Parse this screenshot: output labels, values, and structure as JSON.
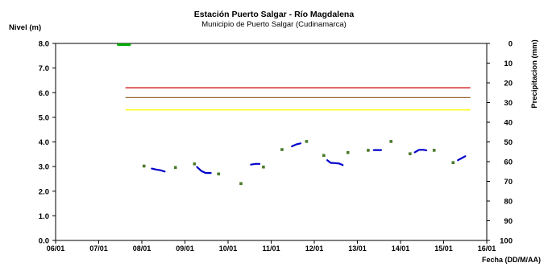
{
  "chart_data": {
    "type": "line",
    "title": "Estación Puerto Salgar - Río Magdalena",
    "subtitle": "Municipio de Puerto Salgar (Cudinamarca)",
    "ylabel": "Nivel (m)",
    "y2label": "Precipitacion (mm)",
    "xlabel": "Fecha (DD/M/AA)",
    "x_ticks": [
      "06/01",
      "07/01",
      "08/01",
      "09/01",
      "10/01",
      "11/01",
      "12/01",
      "13/01",
      "14/01",
      "15/01",
      "16/01"
    ],
    "y_ticks": [
      "0.0",
      "1.0",
      "2.0",
      "3.0",
      "4.0",
      "5.0",
      "6.0",
      "7.0",
      "8.0"
    ],
    "y2_ticks": [
      "0",
      "10",
      "20",
      "30",
      "40",
      "50",
      "60",
      "70",
      "80",
      "90",
      "100"
    ],
    "ylim": [
      0,
      8
    ],
    "y2lim": [
      0,
      100
    ],
    "xlim_days": [
      1,
      11
    ],
    "grid": false,
    "thresholds": [
      {
        "level": 6.2,
        "color": "#cc0000"
      },
      {
        "level": 5.8,
        "color": "#996633"
      },
      {
        "level": 5.3,
        "color": "#ffff00"
      }
    ],
    "series": [
      {
        "color": "#0000cc",
        "segments": [
          [
            [
              3.23,
              2.92
            ],
            [
              3.33,
              2.88
            ],
            [
              3.43,
              2.85
            ],
            [
              3.53,
              2.8
            ]
          ],
          [
            [
              4.28,
              2.98
            ],
            [
              4.38,
              2.82
            ],
            [
              4.48,
              2.74
            ],
            [
              4.6,
              2.74
            ]
          ],
          [
            [
              5.53,
              3.08
            ],
            [
              5.63,
              3.11
            ],
            [
              5.73,
              3.11
            ]
          ],
          [
            [
              6.48,
              3.82
            ],
            [
              6.58,
              3.9
            ],
            [
              6.68,
              3.94
            ]
          ],
          [
            [
              7.3,
              3.26
            ],
            [
              7.38,
              3.15
            ],
            [
              7.48,
              3.14
            ],
            [
              7.58,
              3.12
            ],
            [
              7.66,
              3.06
            ]
          ],
          [
            [
              8.38,
              3.67
            ],
            [
              8.55,
              3.67
            ]
          ],
          [
            [
              9.33,
              3.58
            ],
            [
              9.43,
              3.68
            ],
            [
              9.53,
              3.68
            ],
            [
              9.6,
              3.66
            ]
          ],
          [
            [
              10.33,
              3.26
            ],
            [
              10.43,
              3.35
            ],
            [
              10.5,
              3.42
            ]
          ]
        ]
      },
      {
        "color": "#4a7a2a",
        "points": [
          [
            3.05,
            3.02
          ],
          [
            3.78,
            2.96
          ],
          [
            4.22,
            3.11
          ],
          [
            4.78,
            2.7
          ],
          [
            5.3,
            2.31
          ],
          [
            5.82,
            2.98
          ],
          [
            6.25,
            3.69
          ],
          [
            6.82,
            4.02
          ],
          [
            7.22,
            3.45
          ],
          [
            7.78,
            3.57
          ],
          [
            8.25,
            3.66
          ],
          [
            8.78,
            4.02
          ],
          [
            9.22,
            3.52
          ],
          [
            9.78,
            3.66
          ],
          [
            10.22,
            3.16
          ]
        ]
      },
      {
        "color": "#00aa00",
        "axis": "right",
        "segments": [
          [
            [
              2.45,
              0
            ],
            [
              2.72,
              0
            ]
          ]
        ]
      }
    ]
  }
}
